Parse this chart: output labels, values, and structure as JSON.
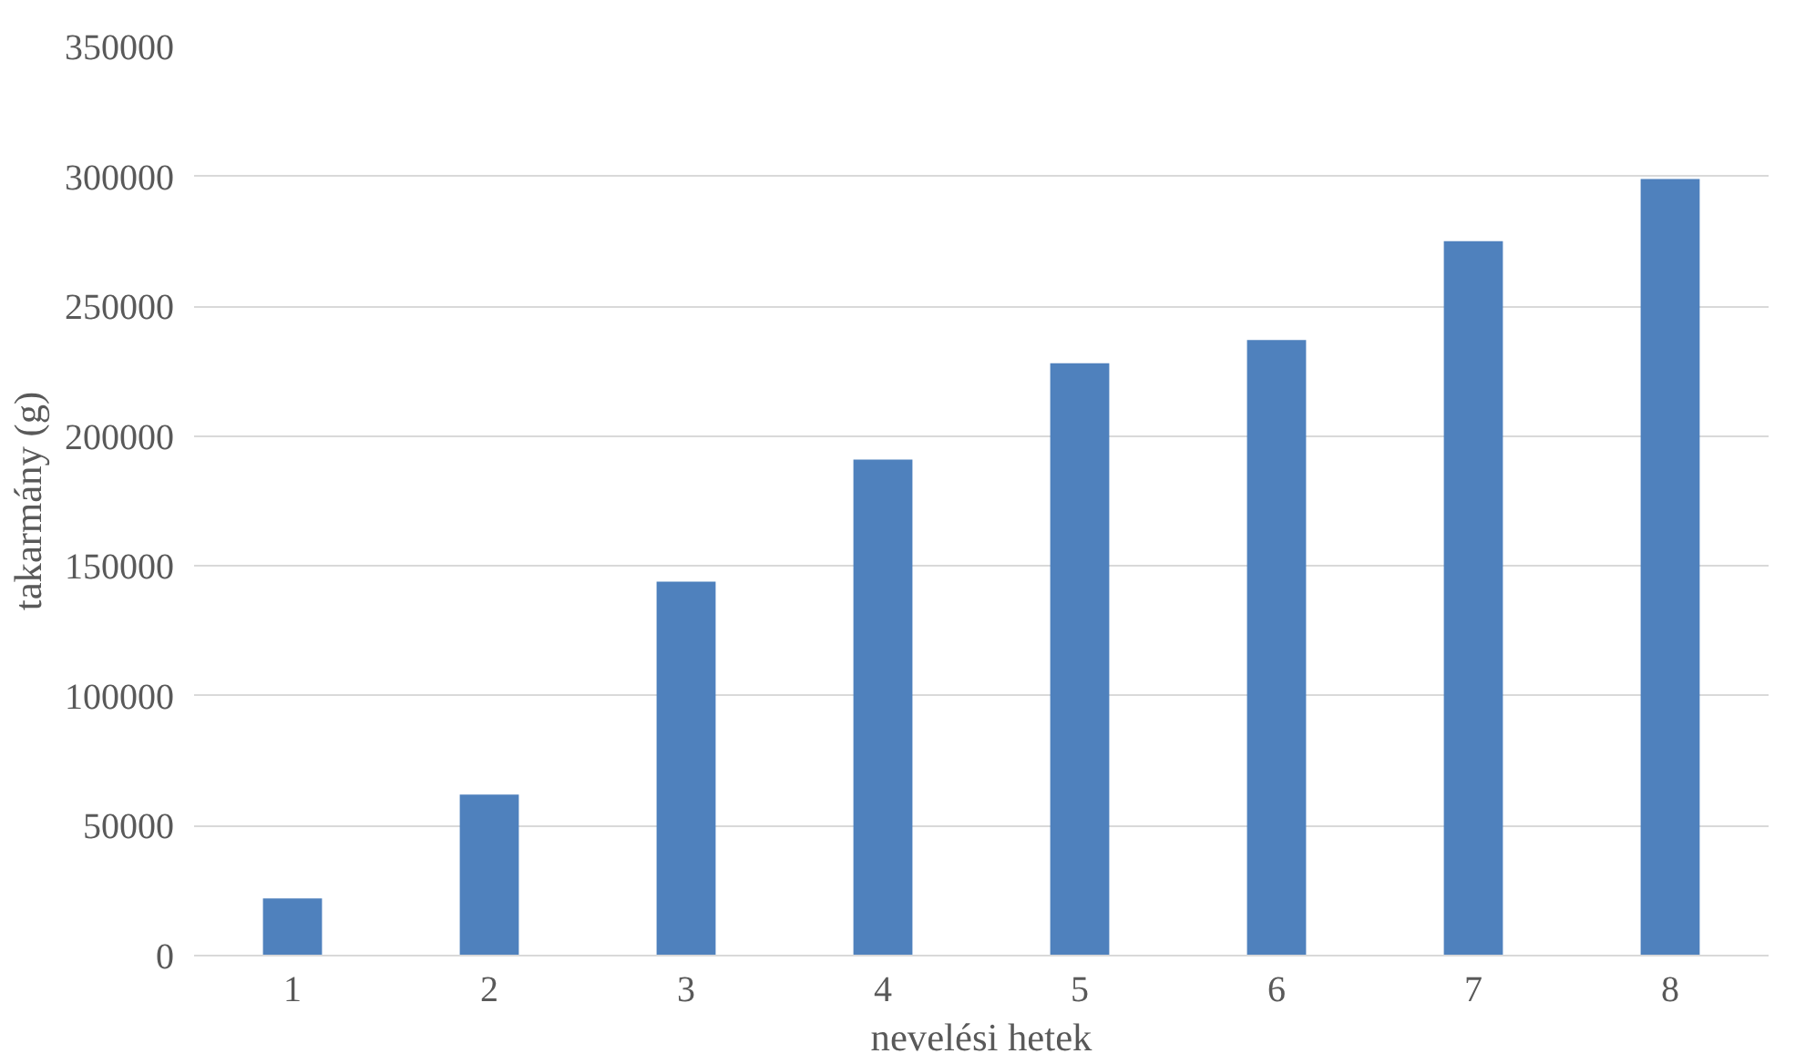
{
  "chart_data": {
    "type": "bar",
    "xlabel": "nevelési hetek",
    "ylabel": "takarmány (g)",
    "categories": [
      "1",
      "2",
      "3",
      "4",
      "5",
      "6",
      "7",
      "8"
    ],
    "values": [
      22000,
      62000,
      144000,
      191000,
      228000,
      237000,
      275000,
      299000
    ],
    "color": "#4f81bd",
    "ylim": [
      0,
      350000
    ],
    "yticks": [
      0,
      50000,
      100000,
      150000,
      200000,
      250000,
      300000,
      350000
    ],
    "grid": "y"
  }
}
